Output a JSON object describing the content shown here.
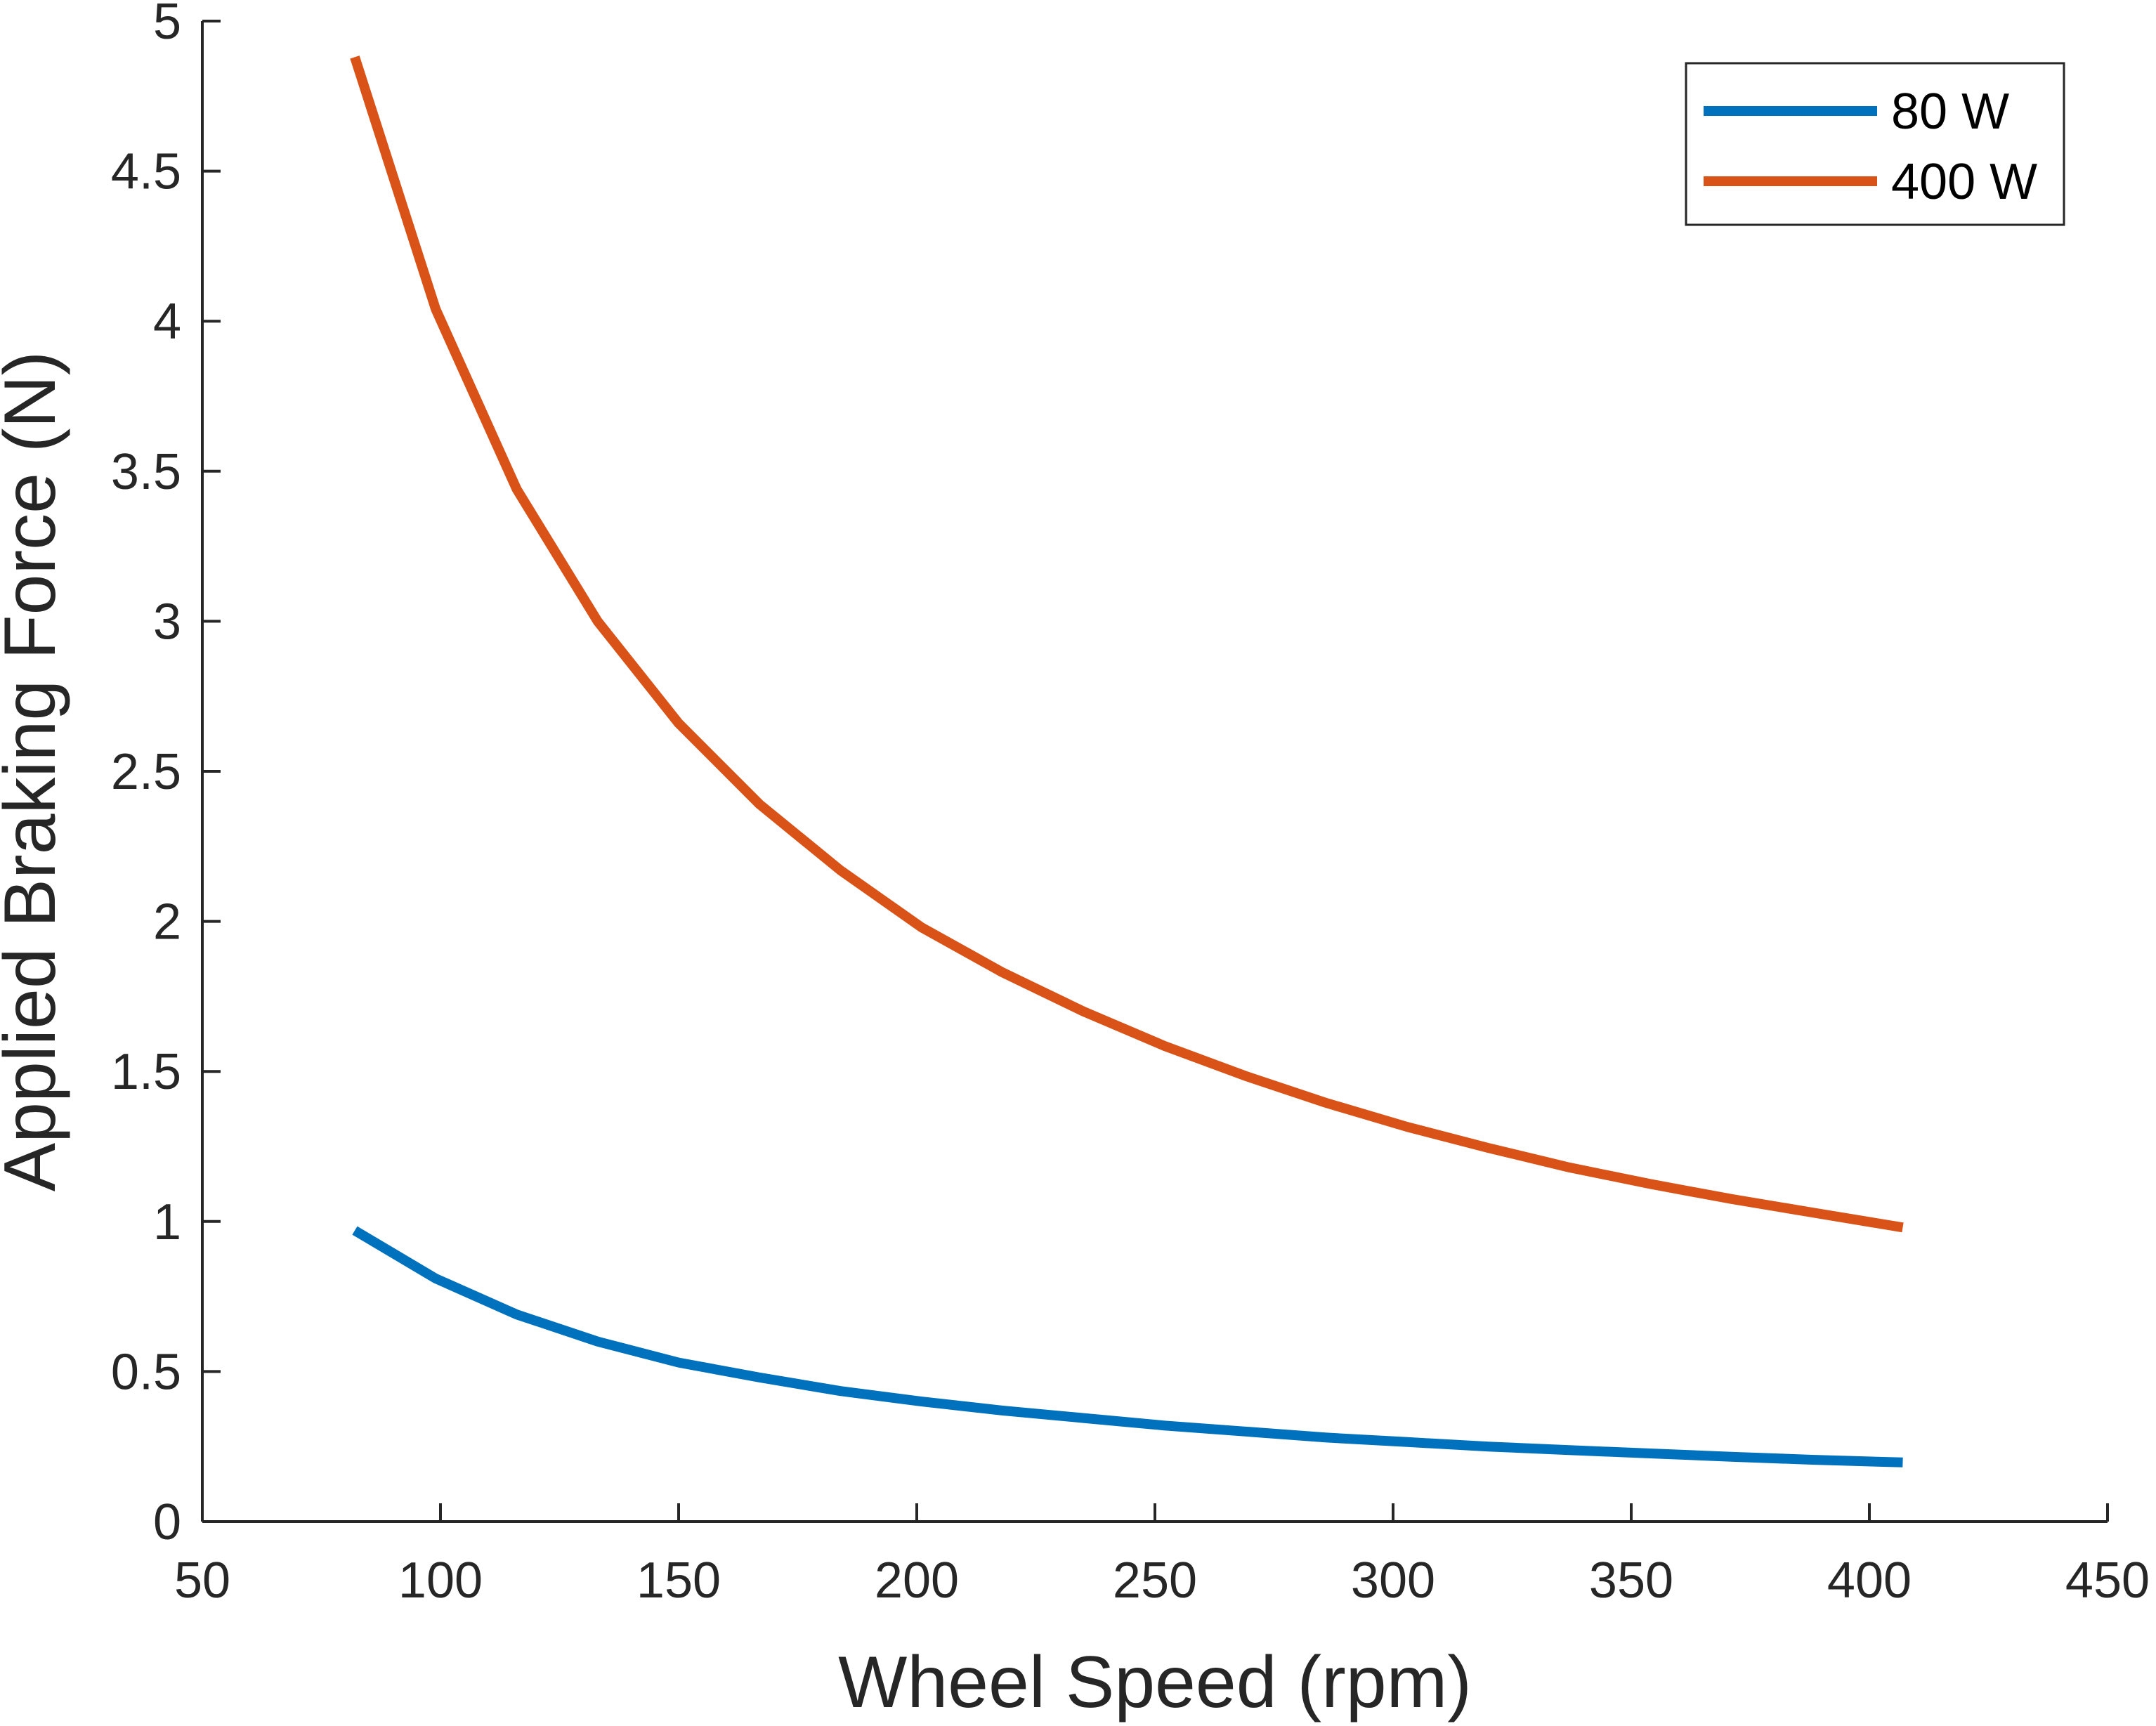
{
  "chart_data": {
    "type": "line",
    "xlabel": "Wheel Speed (rpm)",
    "ylabel": "Applied Braking Force (N)",
    "xlim": [
      50,
      450
    ],
    "ylim": [
      0,
      5
    ],
    "xticks": [
      50,
      100,
      150,
      200,
      250,
      300,
      350,
      400,
      450
    ],
    "yticks": [
      0,
      0.5,
      1,
      1.5,
      2,
      2.5,
      3,
      3.5,
      4,
      4.5,
      5
    ],
    "xtick_labels": [
      "50",
      "100",
      "150",
      "200",
      "250",
      "300",
      "350",
      "400",
      "450"
    ],
    "ytick_labels": [
      "0",
      "0.5",
      "1",
      "1.5",
      "2",
      "2.5",
      "3",
      "3.5",
      "4",
      "4.5",
      "5"
    ],
    "grid": false,
    "legend_position": "top-right",
    "series": [
      {
        "name": "80 W",
        "color": "#0072BD",
        "x": [
          82,
          99,
          116,
          133,
          150,
          167,
          184,
          201,
          218,
          235,
          252,
          269,
          286,
          303,
          320,
          337,
          354,
          371,
          388,
          407
        ],
        "y": [
          0.97,
          0.81,
          0.69,
          0.6,
          0.53,
          0.48,
          0.435,
          0.4,
          0.37,
          0.345,
          0.32,
          0.3,
          0.28,
          0.265,
          0.25,
          0.238,
          0.227,
          0.216,
          0.206,
          0.197
        ]
      },
      {
        "name": "400 W",
        "color": "#D95319",
        "x": [
          82,
          99,
          116,
          133,
          150,
          167,
          184,
          201,
          218,
          235,
          252,
          269,
          286,
          303,
          320,
          337,
          354,
          371,
          388,
          407
        ],
        "y": [
          4.88,
          4.04,
          3.44,
          3.0,
          2.66,
          2.39,
          2.17,
          1.98,
          1.83,
          1.7,
          1.585,
          1.485,
          1.395,
          1.315,
          1.245,
          1.18,
          1.125,
          1.075,
          1.03,
          0.98
        ]
      }
    ]
  }
}
